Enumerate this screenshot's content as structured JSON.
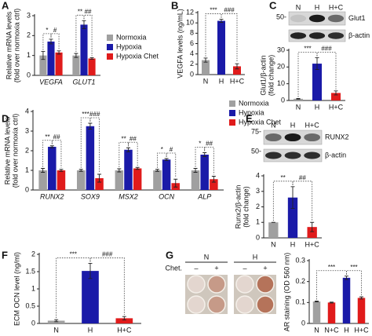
{
  "chart_data": [
    {
      "type": "bar",
      "panel": "A",
      "ylabel": [
        "Relative mRNA levels",
        "(fold over normoxia ctrl)"
      ],
      "categories": [
        "VEGFA",
        "GLUT1"
      ],
      "series": [
        {
          "name": "Normoxia",
          "color": "#a0a0a0",
          "values": [
            1.0,
            1.0
          ],
          "errors": [
            0.2,
            0.1
          ]
        },
        {
          "name": "Hypoxia",
          "color": "#1a1aa8",
          "values": [
            1.7,
            2.55
          ],
          "errors": [
            0.12,
            0.2
          ]
        },
        {
          "name": "Hypoxia Chet",
          "color": "#e01b1b",
          "values": [
            1.15,
            0.85
          ],
          "errors": [
            0.08,
            0.04
          ]
        }
      ],
      "annotations": [
        [
          "*",
          "#"
        ],
        [
          "**",
          "##"
        ]
      ],
      "ylim": [
        0,
        3
      ],
      "yticks": [
        0,
        1,
        2,
        3
      ]
    },
    {
      "type": "bar",
      "panel": "B",
      "ylabel": [
        "VEGFA levels (ng/mL)"
      ],
      "categories": [
        "N",
        "H",
        "H+C"
      ],
      "values": [
        2.8,
        10.4,
        1.6
      ],
      "errors": [
        0.4,
        0.3,
        0.5
      ],
      "colors": [
        "#a0a0a0",
        "#1a1aa8",
        "#e01b1b"
      ],
      "annotations": [
        "***",
        "###"
      ],
      "ylim": [
        0,
        12
      ],
      "yticks": [
        0,
        2,
        4,
        6,
        8,
        10,
        12
      ]
    },
    {
      "type": "bar",
      "panel": "C",
      "ylabel": [
        "Glut1/β-actin",
        "(fold change)"
      ],
      "blot": {
        "lanes": [
          "N",
          "H",
          "H+C"
        ],
        "markers": [
          "50-"
        ],
        "bands": [
          "Glut1",
          "β-actin"
        ]
      },
      "categories": [
        "N",
        "H",
        "H+C"
      ],
      "values": [
        1,
        22,
        4.5
      ],
      "errors": [
        0.2,
        3.5,
        1.2
      ],
      "colors": [
        "#a0a0a0",
        "#1a1aa8",
        "#e01b1b"
      ],
      "annotations": [
        "***",
        "###"
      ],
      "ylim": [
        0,
        30
      ],
      "yticks": [
        0,
        10,
        20,
        30
      ]
    },
    {
      "type": "bar",
      "panel": "D",
      "ylabel": [
        "Relative mRNA levels",
        "(fold over normoxia ctrl)"
      ],
      "categories": [
        "RUNX2",
        "SOX9",
        "MSX2",
        "OCN",
        "ALP"
      ],
      "series": [
        {
          "name": "Normoxia",
          "color": "#a0a0a0",
          "values": [
            1,
            1,
            1,
            1,
            1
          ],
          "errors": [
            0.1,
            0.05,
            0.08,
            0.05,
            0.1
          ]
        },
        {
          "name": "Hypoxia",
          "color": "#1a1aa8",
          "values": [
            2.2,
            3.25,
            2.05,
            1.55,
            1.8
          ],
          "errors": [
            0.05,
            0.15,
            0.1,
            0.05,
            0.1
          ]
        },
        {
          "name": "Hypoxia Chet",
          "color": "#e01b1b",
          "values": [
            1.0,
            0.6,
            1.1,
            0.35,
            0.55
          ],
          "errors": [
            0.05,
            0.2,
            0.05,
            0.2,
            0.15
          ]
        }
      ],
      "annotations": [
        [
          "**",
          "##"
        ],
        [
          "***",
          "###"
        ],
        [
          "**",
          "##"
        ],
        [
          "*",
          "#"
        ],
        [
          "*",
          "##"
        ]
      ],
      "ylim": [
        0,
        4
      ],
      "yticks": [
        0,
        1,
        2,
        3,
        4
      ]
    },
    {
      "type": "bar",
      "panel": "E",
      "ylabel": [
        "Runx2/β-actin",
        "(fold change)"
      ],
      "blot": {
        "lanes": [
          "N",
          "H",
          "H+C"
        ],
        "markers": [
          "75-",
          "50-"
        ],
        "bands": [
          "RUNX2",
          "β-actin"
        ]
      },
      "categories": [
        "N",
        "H",
        "H+C"
      ],
      "values": [
        1,
        2.6,
        0.7
      ],
      "errors": [
        0,
        0.7,
        0.3
      ],
      "colors": [
        "#a0a0a0",
        "#1a1aa8",
        "#e01b1b"
      ],
      "annotations": [
        "**",
        "##"
      ],
      "ylim": [
        0,
        4
      ],
      "yticks": [
        0,
        1,
        2,
        3,
        4
      ]
    },
    {
      "type": "bar",
      "panel": "F",
      "ylabel": [
        "ECM OCN level (ng/ml)"
      ],
      "categories": [
        "N",
        "H",
        "H+C"
      ],
      "values": [
        0.08,
        1.52,
        0.15
      ],
      "errors": [
        0.03,
        0.22,
        0.05
      ],
      "colors": [
        "#a0a0a0",
        "#1a1aa8",
        "#e01b1b"
      ],
      "annotations": [
        "***",
        "###"
      ],
      "ylim": [
        0,
        2
      ],
      "yticks": [
        0,
        0.5,
        1,
        1.5,
        2
      ]
    },
    {
      "type": "bar",
      "panel": "G",
      "ylabel": [
        "AR staining (OD 560 nm)"
      ],
      "plate": {
        "groups": [
          "N",
          "H"
        ],
        "row_label": "Chet.",
        "signs": [
          "–",
          "+",
          "–",
          "+"
        ]
      },
      "categories": [
        "N",
        "N+C",
        "H",
        "H+C"
      ],
      "values": [
        0.105,
        0.1,
        0.218,
        0.122
      ],
      "errors": [
        0.002,
        0.002,
        0.008,
        0.005
      ],
      "colors": [
        "#a0a0a0",
        "#e01b1b",
        "#1a1aa8",
        "#e01b1b"
      ],
      "annotations": [
        "***",
        "***"
      ],
      "ylim": [
        0,
        0.3
      ],
      "yticks": [
        0,
        0.1,
        0.2,
        0.3
      ]
    }
  ]
}
